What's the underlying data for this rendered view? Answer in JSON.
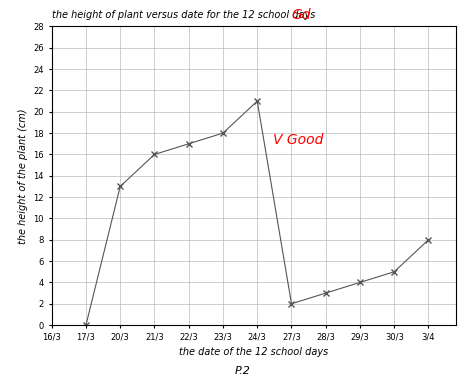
{
  "chart_data": {
    "type": "line",
    "title": "the height of plant versus date for the 12 school days",
    "x_label": "the date of the 12 school days",
    "y_label": "the height of the plant (cm)",
    "categories": [
      "16/3",
      "17/3",
      "20/3",
      "21/3",
      "22/3",
      "23/3",
      "24/3",
      "27/3",
      "28/3",
      "29/3",
      "30/3",
      "3/4"
    ],
    "values": [
      null,
      0,
      13,
      16,
      17,
      18,
      21,
      2,
      3,
      4,
      5,
      8
    ],
    "color": "#555555",
    "marker": "x",
    "line_style": "solid",
    "ylim": [
      0,
      28
    ],
    "yticks": [
      0,
      2,
      4,
      6,
      8,
      10,
      12,
      14,
      16,
      18,
      20,
      22,
      24,
      26,
      28
    ],
    "grid": true,
    "annotations": [
      "Gd",
      "V Good",
      "P.2"
    ]
  }
}
